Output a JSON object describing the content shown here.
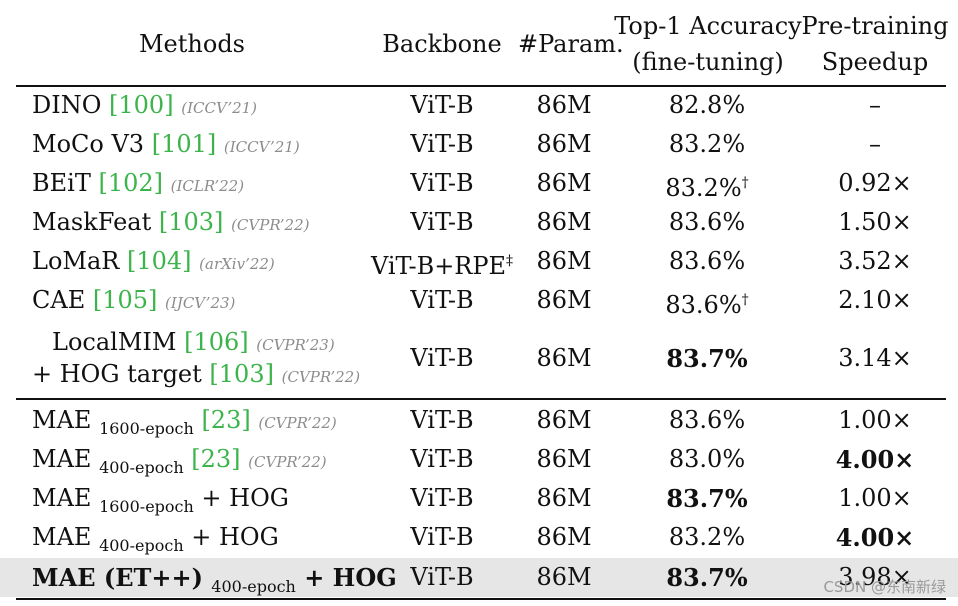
{
  "header": {
    "methods": "Methods",
    "backbone": "Backbone",
    "param": "#Param.",
    "acc_line1": "Top-1 Accuracy",
    "acc_line2": "(fine-tuning)",
    "speed_line1": "Pre-training",
    "speed_line2": "Speedup"
  },
  "rows": [
    {
      "name": "DINO ",
      "ref": "[100]",
      "venue": "(ICCV’21)",
      "backbone": "ViT-B",
      "param": "86M",
      "acc": "82.8%",
      "acc_mark": "",
      "speed": "–"
    },
    {
      "name": "MoCo V3 ",
      "ref": "[101]",
      "venue": "(ICCV’21)",
      "backbone": "ViT-B",
      "param": "86M",
      "acc": "83.2%",
      "acc_mark": "",
      "speed": "–"
    },
    {
      "name": "BEiT ",
      "ref": "[102]",
      "venue": "(ICLR’22)",
      "backbone": "ViT-B",
      "param": "86M",
      "acc": "83.2%",
      "acc_mark": "†",
      "speed": "0.92×"
    },
    {
      "name": "MaskFeat ",
      "ref": "[103]",
      "venue": "(CVPR’22)",
      "backbone": "ViT-B",
      "param": "86M",
      "acc": "83.6%",
      "acc_mark": "",
      "speed": "1.50×"
    },
    {
      "name": "LoMaR ",
      "ref": "[104]",
      "venue": "(arXiv’22)",
      "backbone": "ViT-B+RPE",
      "backbone_mark": "‡",
      "param": "86M",
      "acc": "83.6%",
      "acc_mark": "",
      "speed": "3.52×"
    },
    {
      "name": "CAE ",
      "ref": "[105]",
      "venue": "(IJCV’23)",
      "backbone": "ViT-B",
      "param": "86M",
      "acc": "83.6%",
      "acc_mark": "†",
      "speed": "2.10×"
    }
  ],
  "localmim": {
    "line1_name": "LocalMIM ",
    "line1_ref": "[106]",
    "line1_venue": "(CVPR’23)",
    "line2_name": "+ HOG target ",
    "line2_ref": "[103]",
    "line2_venue": "(CVPR’22)",
    "backbone": "ViT-B",
    "param": "86M",
    "acc": "83.7%",
    "speed": "3.14×"
  },
  "mae_rows": [
    {
      "name": "MAE ",
      "sub": "1600-epoch",
      "extra": " ",
      "ref": "[23]",
      "venue": "(CVPR’22)",
      "backbone": "ViT-B",
      "param": "86M",
      "acc": "83.6%",
      "speed": "1.00×"
    },
    {
      "name": "MAE ",
      "sub": "400-epoch",
      "extra": " ",
      "ref": "[23]",
      "venue": "(CVPR’22)",
      "backbone": "ViT-B",
      "param": "86M",
      "acc": "83.0%",
      "speed": "4.00×"
    },
    {
      "name": "MAE ",
      "sub": "1600-epoch",
      "extra": " + HOG",
      "ref": "",
      "venue": "",
      "backbone": "ViT-B",
      "param": "86M",
      "acc": "83.7%",
      "speed": "1.00×"
    },
    {
      "name": "MAE ",
      "sub": "400-epoch",
      "extra": " + HOG",
      "ref": "",
      "venue": "",
      "backbone": "ViT-B",
      "param": "86M",
      "acc": "83.2%",
      "speed": "4.00×"
    },
    {
      "name": "MAE (ET++) ",
      "sub": "400-epoch",
      "extra": " + HOG",
      "ref": "",
      "venue": "",
      "backbone": "ViT-B",
      "param": "86M",
      "acc": "83.7%",
      "speed": "3.98×"
    }
  ],
  "watermark": "CSDN @东南新绿",
  "colors": {
    "ref_green": "#3cb44b",
    "highlight_row": "#e6e6e6",
    "venue_gray": "#8c8c8c"
  }
}
